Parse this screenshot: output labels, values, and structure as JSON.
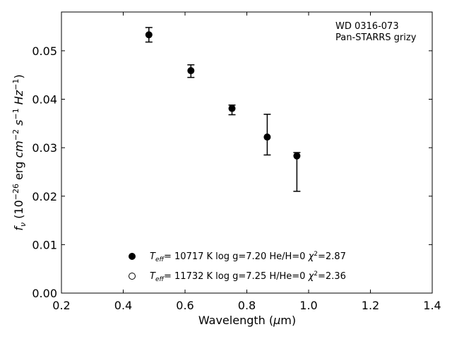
{
  "chart_data": {
    "type": "scatter",
    "annotation": [
      "WD 0316-073",
      "Pan-STARRS grizy"
    ],
    "xlabel": {
      "main": "Wavelength (",
      "mu": "μ",
      "unit": "m)"
    },
    "ylabel": {
      "pre": "f",
      "sub": "ν",
      "open": " (10",
      "exp1": "−26",
      "erg": " erg ",
      "cm": "cm",
      "exp2": "−2",
      "s": " s",
      "exp3": "−1",
      "hz": " Hz",
      "exp4": "−1",
      "close": ")"
    },
    "xlim": [
      0.2,
      1.4
    ],
    "ylim": [
      0.0,
      0.058
    ],
    "xticks": [
      0.2,
      0.4,
      0.6,
      0.8,
      1.0,
      1.2,
      1.4
    ],
    "xtick_labels": [
      "0.2",
      "0.4",
      "0.6",
      "0.8",
      "1.0",
      "1.2",
      "1.4"
    ],
    "yticks": [
      0.0,
      0.01,
      0.02,
      0.03,
      0.04,
      0.05
    ],
    "ytick_labels": [
      "0.00",
      "0.01",
      "0.02",
      "0.03",
      "0.04",
      "0.05"
    ],
    "grid": false,
    "legend_position": "lower-center",
    "observed": {
      "x": [
        0.483,
        0.619,
        0.752,
        0.866,
        0.962
      ],
      "y": [
        0.0533,
        0.0458,
        0.0378,
        0.0327,
        0.025
      ],
      "yerr": [
        0.0015,
        0.0013,
        0.001,
        0.0042,
        0.004
      ],
      "color": "#000000"
    },
    "series": [
      {
        "marker": "filled",
        "label": {
          "t": "T",
          "sub": "eff",
          "rest": "= 10717 K  log g=7.20  He/H=0  ",
          "chi": "χ",
          "sup": "2",
          "val": "=2.87"
        },
        "x": [
          0.483,
          0.619,
          0.752,
          0.866,
          0.962
        ],
        "y": [
          0.0533,
          0.0459,
          0.0381,
          0.0322,
          0.0283
        ]
      },
      {
        "marker": "open",
        "label": {
          "t": "T",
          "sub": "eff",
          "rest": "= 11732 K  log g=7.25  H/He=0  ",
          "chi": "χ",
          "sup": "2",
          "val": "=2.36"
        },
        "x": [],
        "y": []
      }
    ]
  }
}
